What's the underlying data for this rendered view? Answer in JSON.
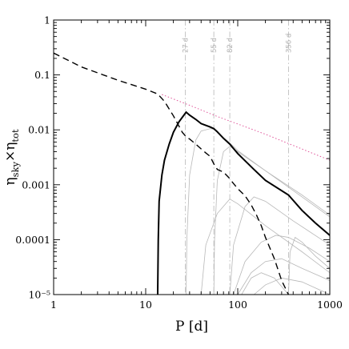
{
  "chart_data": {
    "type": "line",
    "xlabel": "P [d]",
    "ylabel": "η_sky×η_tot",
    "xscale": "log",
    "yscale": "log",
    "xlim": [
      1,
      1000
    ],
    "ylim": [
      1e-05,
      1
    ],
    "x_ticks": [
      {
        "value": 1,
        "label": "1"
      },
      {
        "value": 10,
        "label": "10"
      },
      {
        "value": 100,
        "label": "100"
      },
      {
        "value": 1000,
        "label": "1000"
      }
    ],
    "y_ticks": [
      {
        "value": 1,
        "label": "1"
      },
      {
        "value": 0.1,
        "label": "0.1"
      },
      {
        "value": 0.01,
        "label": "0.01"
      },
      {
        "value": 0.001,
        "label": "0.001"
      },
      {
        "value": 0.0001,
        "label": "0.0001"
      },
      {
        "value": 1e-05,
        "label": "10⁻⁵"
      }
    ],
    "vertical_markers": [
      {
        "x": 27,
        "label": "27 d"
      },
      {
        "x": 55,
        "label": "55 d"
      },
      {
        "x": 82,
        "label": "82 d"
      },
      {
        "x": 356,
        "label": "356 d"
      }
    ],
    "series": [
      {
        "style": "solid-thick",
        "color": "#000000",
        "points": [
          [
            13.5,
            1e-05
          ],
          [
            13.7,
            0.0001
          ],
          [
            14,
            0.0005
          ],
          [
            15,
            0.0015
          ],
          [
            16,
            0.0028
          ],
          [
            18,
            0.0055
          ],
          [
            20,
            0.009
          ],
          [
            23,
            0.014
          ],
          [
            27.5,
            0.021
          ],
          [
            30,
            0.0185
          ],
          [
            35,
            0.0155
          ],
          [
            40,
            0.013
          ],
          [
            50,
            0.0113
          ],
          [
            55,
            0.0105
          ],
          [
            60,
            0.0092
          ],
          [
            70,
            0.007
          ],
          [
            82,
            0.0055
          ],
          [
            100,
            0.0037
          ],
          [
            150,
            0.0019
          ],
          [
            200,
            0.0012
          ],
          [
            356,
            0.00065
          ],
          [
            500,
            0.00034
          ],
          [
            700,
            0.0002
          ],
          [
            1000,
            0.00012
          ]
        ]
      },
      {
        "style": "dashed",
        "color": "#000000",
        "points": [
          [
            1,
            0.25
          ],
          [
            2,
            0.14
          ],
          [
            5,
            0.08
          ],
          [
            10,
            0.055
          ],
          [
            13.5,
            0.045
          ],
          [
            16,
            0.033
          ],
          [
            20,
            0.018
          ],
          [
            25,
            0.009
          ],
          [
            27.5,
            0.0075
          ],
          [
            30,
            0.0068
          ],
          [
            35,
            0.0055
          ],
          [
            40,
            0.0045
          ],
          [
            45,
            0.0038
          ],
          [
            50,
            0.0033
          ],
          [
            55,
            0.0024
          ],
          [
            60,
            0.0019
          ],
          [
            70,
            0.0017
          ],
          [
            80,
            0.00135
          ],
          [
            90,
            0.00105
          ],
          [
            100,
            0.00085
          ],
          [
            120,
            0.00063
          ],
          [
            140,
            0.00043
          ],
          [
            160,
            0.00028
          ],
          [
            180,
            0.00018
          ],
          [
            200,
            0.00011
          ],
          [
            250,
            4.5e-05
          ],
          [
            300,
            1.8e-05
          ],
          [
            356,
            1e-05
          ]
        ]
      },
      {
        "style": "dotted",
        "color": "#e0559a",
        "points": [
          [
            15,
            0.044
          ],
          [
            30,
            0.028
          ],
          [
            60,
            0.0175
          ],
          [
            100,
            0.0128
          ],
          [
            200,
            0.0083
          ],
          [
            400,
            0.0052
          ],
          [
            1000,
            0.0028
          ]
        ]
      }
    ],
    "thin_curves": [
      [
        [
          27.5,
          1e-05
        ],
        [
          28,
          0.0001
        ],
        [
          30,
          0.0015
        ],
        [
          35,
          0.0065
        ],
        [
          40,
          0.0095
        ],
        [
          50,
          0.0105
        ],
        [
          55,
          0.0103
        ],
        [
          60,
          0.009
        ],
        [
          80,
          0.006
        ],
        [
          100,
          0.0042
        ],
        [
          200,
          0.0018
        ],
        [
          500,
          0.0006
        ],
        [
          1000,
          0.00026
        ]
      ],
      [
        [
          55,
          1e-05
        ],
        [
          56,
          0.0001
        ],
        [
          60,
          0.0012
        ],
        [
          70,
          0.004
        ],
        [
          82,
          0.005
        ],
        [
          100,
          0.004
        ],
        [
          200,
          0.0018
        ],
        [
          500,
          0.00065
        ],
        [
          1000,
          0.00028
        ]
      ],
      [
        [
          40,
          1e-05
        ],
        [
          45,
          8e-05
        ],
        [
          60,
          0.0003
        ],
        [
          82,
          0.00055
        ],
        [
          100,
          0.00045
        ],
        [
          200,
          0.00018
        ],
        [
          500,
          6e-05
        ],
        [
          1000,
          2.5e-05
        ]
      ],
      [
        [
          82,
          1e-05
        ],
        [
          90,
          8e-05
        ],
        [
          120,
          0.0004
        ],
        [
          150,
          0.0006
        ],
        [
          200,
          0.0005
        ],
        [
          400,
          0.00022
        ],
        [
          1000,
          8e-05
        ]
      ],
      [
        [
          90,
          1e-05
        ],
        [
          120,
          4e-05
        ],
        [
          180,
          9e-05
        ],
        [
          260,
          0.00012
        ],
        [
          356,
          0.00011
        ],
        [
          600,
          7e-05
        ],
        [
          1000,
          4e-05
        ]
      ],
      [
        [
          100,
          1e-05
        ],
        [
          140,
          2.5e-05
        ],
        [
          200,
          4e-05
        ],
        [
          300,
          4.5e-05
        ],
        [
          500,
          3e-05
        ],
        [
          1000,
          1.8e-05
        ]
      ],
      [
        [
          150,
          1e-05
        ],
        [
          200,
          1.5e-05
        ],
        [
          300,
          2e-05
        ],
        [
          500,
          1.7e-05
        ],
        [
          1000,
          1e-05
        ]
      ],
      [
        [
          110,
          1e-05
        ],
        [
          140,
          2e-05
        ],
        [
          180,
          2.5e-05
        ],
        [
          250,
          2e-05
        ],
        [
          356,
          1e-05
        ]
      ],
      [
        [
          356,
          1e-05
        ],
        [
          370,
          6e-05
        ],
        [
          420,
          0.00011
        ],
        [
          500,
          9e-05
        ],
        [
          700,
          5e-05
        ],
        [
          1000,
          3e-05
        ]
      ]
    ]
  }
}
